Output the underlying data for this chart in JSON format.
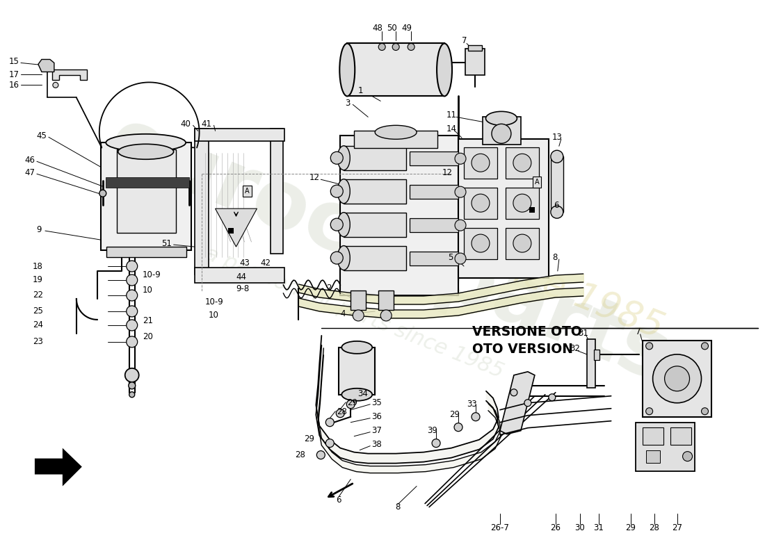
{
  "bg_color": "#ffffff",
  "watermark1": "eurocarparts",
  "watermark2": "a passion for parts since 1985",
  "versione1": "VERSIONE OTO",
  "versione2": "OTO VERSION",
  "fig_width": 11.0,
  "fig_height": 8.0,
  "dpi": 100,
  "part_labels": {
    "top_left": [
      "15",
      "17",
      "16"
    ],
    "reservoir": [
      "45",
      "46",
      "47",
      "9"
    ],
    "bracket": [
      "40",
      "41",
      "51",
      "43",
      "42",
      "44",
      "9-8",
      "10-9",
      "10"
    ],
    "accumulator_top": [
      "48",
      "50",
      "49",
      "7"
    ],
    "pump": [
      "3",
      "1",
      "12",
      "14",
      "2",
      "4"
    ],
    "abs_unit": [
      "11",
      "13",
      "6",
      "5",
      "8"
    ],
    "left_pipe": [
      "18",
      "19",
      "22",
      "25",
      "24",
      "23",
      "21",
      "20"
    ],
    "lower_oto": [
      "28",
      "29",
      "34",
      "35",
      "36",
      "37",
      "38",
      "39",
      "33",
      "6",
      "8"
    ],
    "lower_right": [
      "31",
      "32",
      "7",
      "26-7",
      "26",
      "30",
      "31",
      "29",
      "28",
      "27"
    ]
  }
}
